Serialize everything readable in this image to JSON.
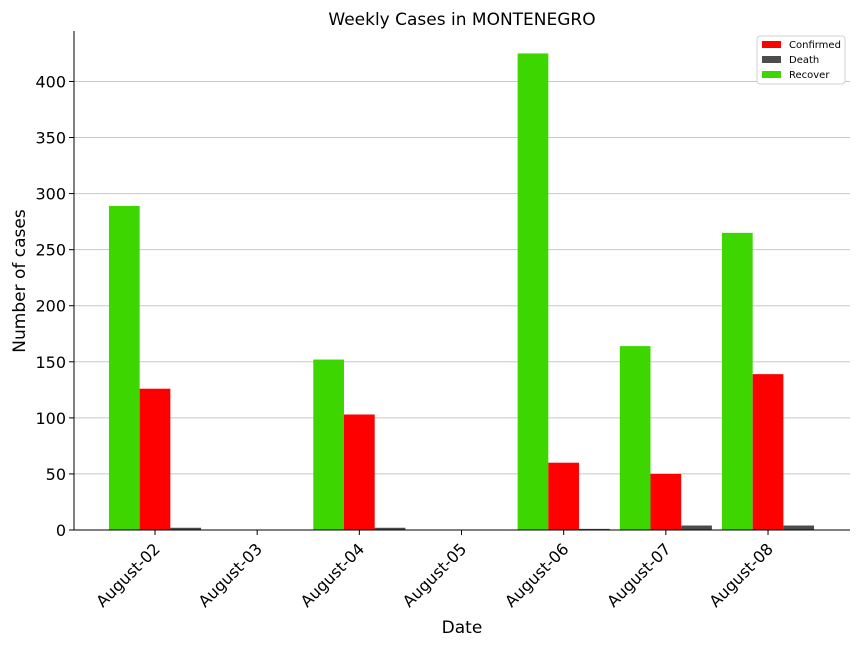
{
  "chart_data": {
    "type": "bar",
    "title": "Weekly Cases in MONTENEGRO",
    "xlabel": "Date",
    "ylabel": "Number of cases",
    "categories": [
      "August-02",
      "August-03",
      "August-04",
      "August-05",
      "August-06",
      "August-07",
      "August-08"
    ],
    "series": [
      {
        "name": "Recover",
        "color": "#3dd600",
        "values": [
          289,
          0,
          152,
          0,
          425,
          164,
          265
        ]
      },
      {
        "name": "Confirmed",
        "color": "#ff0000",
        "values": [
          126,
          0,
          103,
          0,
          60,
          50,
          139
        ]
      },
      {
        "name": "Death",
        "color": "#4c4c4c",
        "values": [
          2,
          0,
          2,
          0,
          1,
          4,
          4
        ]
      }
    ],
    "legend_order": [
      "Confirmed",
      "Death",
      "Recover"
    ],
    "yticks": [
      0,
      50,
      100,
      150,
      200,
      250,
      300,
      350,
      400
    ],
    "ylim": [
      0,
      445
    ],
    "grid": "horizontal",
    "legend_position": "top-right"
  }
}
